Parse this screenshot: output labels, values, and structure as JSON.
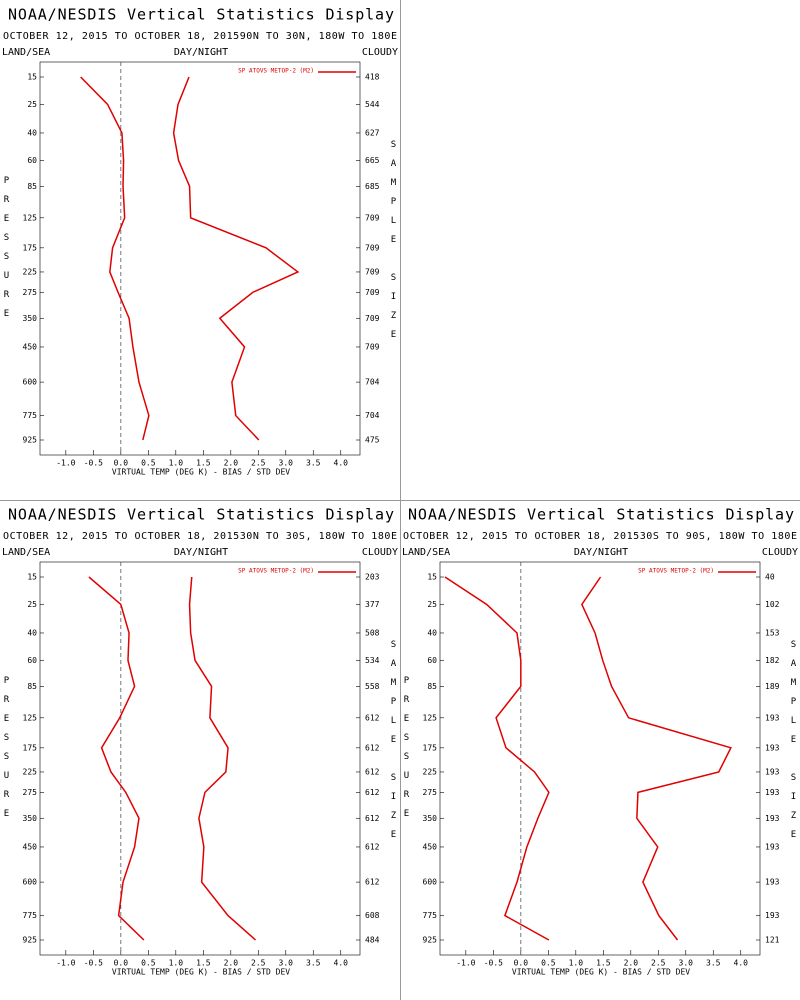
{
  "chart_data": [
    {
      "type": "line",
      "title": "NOAA/NESDIS Vertical Statistics Display",
      "subtitle": "OCTOBER 12, 2015 TO OCTOBER 18, 201590N TO 30N, 180W TO 180E",
      "left_label": "LAND/SEA",
      "center_label": "DAY/NIGHT",
      "right_label": "CLOUDY",
      "y_label": "PRESSURE",
      "y2_label": "SAMPLE SIZE",
      "x_label": "VIRTUAL TEMP (DEG K) - BIAS / STD DEV",
      "levels": [
        15,
        25,
        40,
        60,
        85,
        125,
        175,
        225,
        275,
        350,
        450,
        600,
        775,
        925
      ],
      "sample_size": [
        418,
        544,
        627,
        665,
        685,
        709,
        709,
        709,
        709,
        709,
        709,
        704,
        704,
        475
      ],
      "series": [
        {
          "name": "SP ATOVS METOP-2 (M2)",
          "color": "#e00000",
          "bias": [
            -0.73,
            -0.24,
            0.02,
            0.05,
            0.04,
            0.07,
            -0.15,
            -0.2,
            -0.05,
            0.15,
            0.22,
            0.33,
            0.51,
            0.4
          ],
          "std_dev": [
            1.24,
            1.04,
            0.96,
            1.05,
            1.25,
            1.27,
            2.64,
            3.22,
            2.4,
            1.8,
            2.25,
            2.02,
            2.09,
            2.51
          ]
        }
      ],
      "xlim": [
        -1.47,
        4.35
      ],
      "xticks": [
        {
          "value": -1,
          "label": "-1.0"
        },
        {
          "value": -0.5,
          "label": "-0.5"
        },
        {
          "value": 0,
          "label": "0.0"
        },
        {
          "value": 0.5,
          "label": "0.5"
        },
        {
          "value": 1,
          "label": "1.0"
        },
        {
          "value": 1.5,
          "label": "1.5"
        },
        {
          "value": 2,
          "label": "2.0"
        },
        {
          "value": 2.5,
          "label": "2.5"
        },
        {
          "value": 3,
          "label": "3.0"
        },
        {
          "value": 3.5,
          "label": "3.5"
        },
        {
          "value": 4,
          "label": "4.0"
        }
      ]
    },
    {
      "type": "line",
      "title": "NOAA/NESDIS Vertical Statistics Display",
      "subtitle": "OCTOBER 12, 2015 TO OCTOBER 18, 201530N TO 30S, 180W TO 180E",
      "left_label": "LAND/SEA",
      "center_label": "DAY/NIGHT",
      "right_label": "CLOUDY",
      "y_label": "PRESSURE",
      "y2_label": "SAMPLE SIZE",
      "x_label": "VIRTUAL TEMP (DEG K) - BIAS / STD DEV",
      "levels": [
        15,
        25,
        40,
        60,
        85,
        125,
        175,
        225,
        275,
        350,
        450,
        600,
        775,
        925
      ],
      "sample_size": [
        203,
        377,
        508,
        534,
        558,
        612,
        612,
        612,
        612,
        612,
        612,
        612,
        608,
        484
      ],
      "series": [
        {
          "name": "SP ATOVS METOP-2 (M2)",
          "color": "#e00000",
          "bias": [
            -0.58,
            0.0,
            0.15,
            0.13,
            0.25,
            -0.02,
            -0.35,
            -0.18,
            0.09,
            0.33,
            0.25,
            0.04,
            -0.04,
            0.42
          ],
          "std_dev": [
            1.29,
            1.25,
            1.27,
            1.35,
            1.65,
            1.62,
            1.95,
            1.91,
            1.53,
            1.42,
            1.51,
            1.47,
            1.95,
            2.45
          ]
        }
      ],
      "xlim": [
        -1.47,
        4.35
      ],
      "xticks": [
        {
          "value": -1,
          "label": "-1.0"
        },
        {
          "value": -0.5,
          "label": "-0.5"
        },
        {
          "value": 0,
          "label": "0.0"
        },
        {
          "value": 0.5,
          "label": "0.5"
        },
        {
          "value": 1,
          "label": "1.0"
        },
        {
          "value": 1.5,
          "label": "1.5"
        },
        {
          "value": 2,
          "label": "2.0"
        },
        {
          "value": 2.5,
          "label": "2.5"
        },
        {
          "value": 3,
          "label": "3.0"
        },
        {
          "value": 3.5,
          "label": "3.5"
        },
        {
          "value": 4,
          "label": "4.0"
        }
      ]
    },
    {
      "type": "line",
      "title": "NOAA/NESDIS Vertical Statistics Display",
      "subtitle": "OCTOBER 12, 2015 TO OCTOBER 18, 201530S TO 90S, 180W TO 180E",
      "left_label": "LAND/SEA",
      "center_label": "DAY/NIGHT",
      "right_label": "CLOUDY",
      "y_label": "PRESSURE",
      "y2_label": "SAMPLE SIZE",
      "x_label": "VIRTUAL TEMP (DEG K) - BIAS / STD DEV",
      "levels": [
        15,
        25,
        40,
        60,
        85,
        125,
        175,
        225,
        275,
        350,
        450,
        600,
        775,
        925
      ],
      "sample_size": [
        40,
        102,
        153,
        182,
        189,
        193,
        193,
        193,
        193,
        193,
        193,
        193,
        193,
        121
      ],
      "series": [
        {
          "name": "SP ATOVS METOP-2 (M2)",
          "color": "#e00000",
          "bias": [
            -1.38,
            -0.62,
            -0.07,
            0.0,
            0.0,
            -0.45,
            -0.27,
            0.25,
            0.51,
            0.31,
            0.11,
            -0.07,
            -0.29,
            0.51
          ],
          "std_dev": [
            1.45,
            1.11,
            1.35,
            1.49,
            1.65,
            1.96,
            3.82,
            3.6,
            2.13,
            2.11,
            2.49,
            2.22,
            2.51,
            2.85
          ]
        }
      ],
      "xlim": [
        -1.47,
        4.35
      ],
      "xticks": [
        {
          "value": -1,
          "label": "-1.0"
        },
        {
          "value": -0.5,
          "label": "-0.5"
        },
        {
          "value": 0,
          "label": "0.0"
        },
        {
          "value": 0.5,
          "label": "0.5"
        },
        {
          "value": 1,
          "label": "1.0"
        },
        {
          "value": 1.5,
          "label": "1.5"
        },
        {
          "value": 2,
          "label": "2.0"
        },
        {
          "value": 2.5,
          "label": "2.5"
        },
        {
          "value": 3,
          "label": "3.0"
        },
        {
          "value": 3.5,
          "label": "3.5"
        },
        {
          "value": 4,
          "label": "4.0"
        }
      ]
    }
  ]
}
